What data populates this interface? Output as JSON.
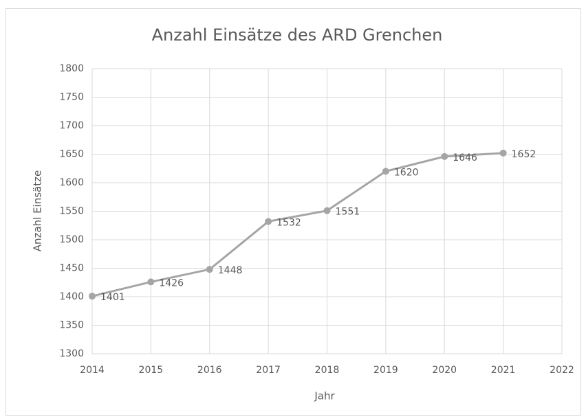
{
  "chart_data": {
    "type": "line",
    "title": "Anzahl Einsätze des ARD Grenchen",
    "x_label": "Jahr",
    "y_label": "Anzahl Einsätze",
    "x": [
      2014,
      2015,
      2016,
      2017,
      2018,
      2019,
      2020,
      2021
    ],
    "series": [
      {
        "name": "Anzahl Einsätze",
        "color": "#a5a5a5",
        "values": [
          1401,
          1426,
          1448,
          1532,
          1551,
          1620,
          1646,
          1652
        ]
      }
    ],
    "xlim": [
      2014,
      2022
    ],
    "xticks": [
      2014,
      2015,
      2016,
      2017,
      2018,
      2019,
      2020,
      2021,
      2022
    ],
    "ylim": [
      1300,
      1800
    ],
    "yticks": [
      1300,
      1350,
      1400,
      1450,
      1500,
      1550,
      1600,
      1650,
      1700,
      1750,
      1800
    ],
    "grid": true
  }
}
